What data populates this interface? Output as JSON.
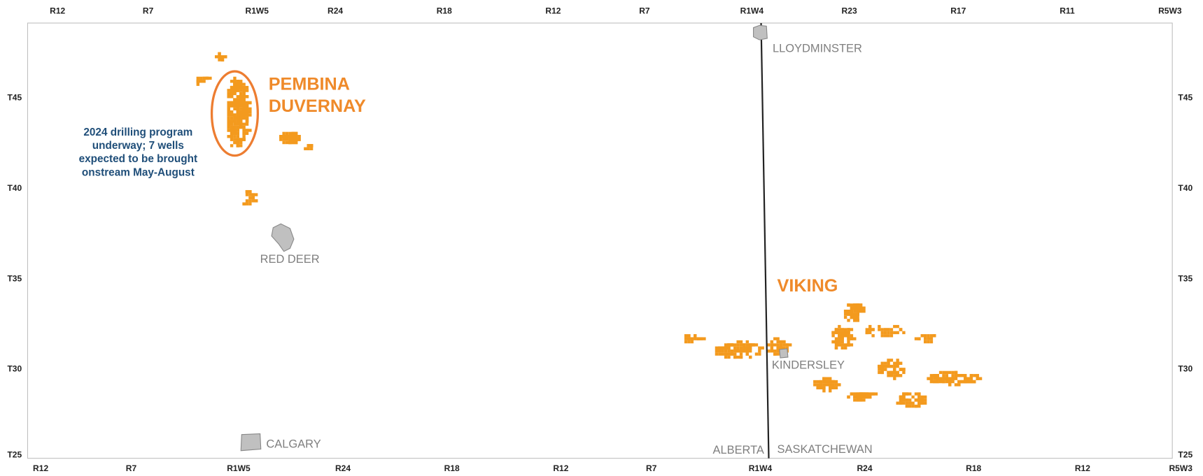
{
  "map": {
    "top_ranges": [
      "R12",
      "R7",
      "R1W5",
      "R24",
      "R18",
      "R12",
      "R7",
      "R1W4",
      "R23",
      "R17",
      "R11",
      "R5W3"
    ],
    "bottom_ranges": [
      "R12",
      "R7",
      "R1W5",
      "R24",
      "R18",
      "R12",
      "R7",
      "R1W4",
      "R24",
      "R18",
      "R12",
      "R5W3"
    ],
    "townships_left": [
      "T45",
      "T40",
      "T35",
      "T30",
      "T25"
    ],
    "townships_right": [
      "T45",
      "T40",
      "T35",
      "T30",
      "T25"
    ],
    "places": [
      "LLOYDMINSTER",
      "RED DEER",
      "KINDERSLEY",
      "CALGARY",
      "ALBERTA",
      "SASKATCHEWAN"
    ],
    "plays": [
      [
        "PEMBINA",
        "DUVERNAY"
      ],
      [
        "VIKING"
      ]
    ],
    "annotation": [
      "2024 drilling program",
      "underway; 7 wells",
      "expected to be brought",
      "onstream May-August"
    ]
  }
}
